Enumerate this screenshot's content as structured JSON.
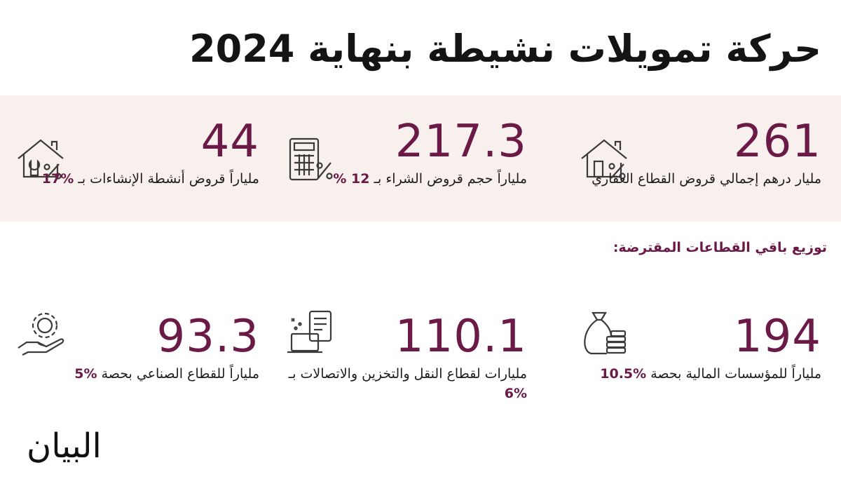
{
  "title": "حركة تمويلات نشيطة بنهاية 2024",
  "top_stats": [
    {
      "value": "261",
      "description": "مليار درهم إجمالي قروض القطاع العقاري",
      "highlight": "",
      "icon": "house-percent-icon"
    },
    {
      "value": "217.3",
      "description": "ملياراً حجم قروض الشراء بـ ",
      "highlight": "12 %",
      "icon": "calculator-percent-icon"
    },
    {
      "value": "44",
      "description": "ملياراً قروض أنشطة الإنشاءات بـ ",
      "highlight": "%17",
      "icon": "house-wrench-percent-icon"
    }
  ],
  "subheading": "توزيع باقي القطاعات المقترضة:",
  "bottom_stats": [
    {
      "value": "194",
      "description": "ملياراً للمؤسسات المالية بحصة ",
      "highlight": "%10.5",
      "icon": "money-bag-coins-icon"
    },
    {
      "value": "110.1",
      "description": "مليارات لقطاع النقل والتخزين والاتصالات بـ ",
      "highlight": "%6",
      "icon": "laptop-document-icon"
    },
    {
      "value": "93.3",
      "description": "ملياراً للقطاع الصناعي بحصة ",
      "highlight": "%5",
      "icon": "hand-gear-icon"
    }
  ],
  "logo": "البيان",
  "colors": {
    "accent": "#6b1a47",
    "band": "#f8f0ed",
    "text": "#1d1d1d"
  }
}
